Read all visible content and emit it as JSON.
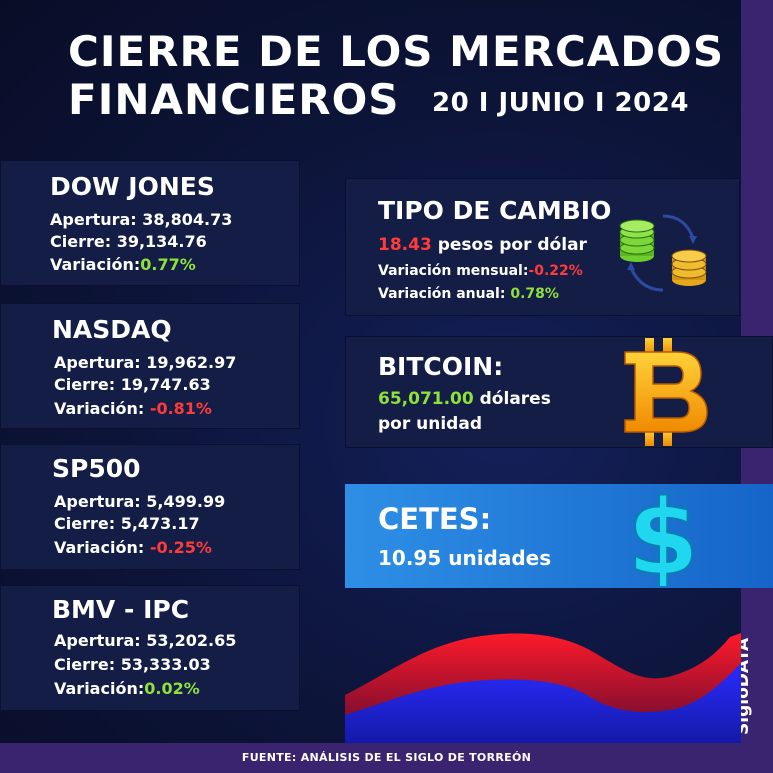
{
  "header": {
    "title_line1": "CIERRE DE LOS MERCADOS",
    "title_line2": "FINANCIEROS",
    "date": "20 I JUNIO I 2024"
  },
  "indices": [
    {
      "name": "DOW JONES",
      "apertura_label": "Apertura:",
      "apertura": "38,804.73",
      "cierre_label": "Cierre:",
      "cierre": "39,134.76",
      "variacion_label": "Variación:",
      "variacion": "0.77%",
      "trend": "up"
    },
    {
      "name": "NASDAQ",
      "apertura_label": "Apertura:",
      "apertura": "19,962.97",
      "cierre_label": "Cierre:",
      "cierre": "19,747.63",
      "variacion_label": "Variación:",
      "variacion": "-0.81%",
      "trend": "down"
    },
    {
      "name": "SP500",
      "apertura_label": "Apertura:",
      "apertura": "5,499.99",
      "cierre_label": "Cierre:",
      "cierre": "5,473.17",
      "variacion_label": "Variación:",
      "variacion": "-0.25%",
      "trend": "down"
    },
    {
      "name": "BMV - IPC",
      "apertura_label": "Apertura:",
      "apertura": "53,202.65",
      "cierre_label": "Cierre:",
      "cierre": "53,333.03",
      "variacion_label": "Variación:",
      "variacion": "0.02%",
      "trend": "up"
    }
  ],
  "tipo_cambio": {
    "title": "TIPO DE CAMBIO",
    "value": "18.43",
    "unit": "pesos por dólar",
    "mensual_label": "Variación mensual:",
    "mensual": "-0.22%",
    "anual_label": "Variación anual:",
    "anual": "0.78%",
    "icon": "currency-exchange-icon"
  },
  "bitcoin": {
    "title": "BITCOIN:",
    "value": "65,071.00",
    "unit_line1": "dólares",
    "unit_line2": "por unidad",
    "icon": "bitcoin-icon"
  },
  "cetes": {
    "title": "CETES:",
    "value": "10.95 unidades",
    "icon": "dollar-sign-icon"
  },
  "brand": "SigloDATA",
  "footer": "FUENTE: ANÁLISIS DE EL SIGLO DE TORREÓN",
  "colors": {
    "positive": "#8ee03a",
    "negative": "#ff3b3b",
    "strip": "#3a2470",
    "card": "#131d45",
    "cetes": "#2e8fe6"
  }
}
